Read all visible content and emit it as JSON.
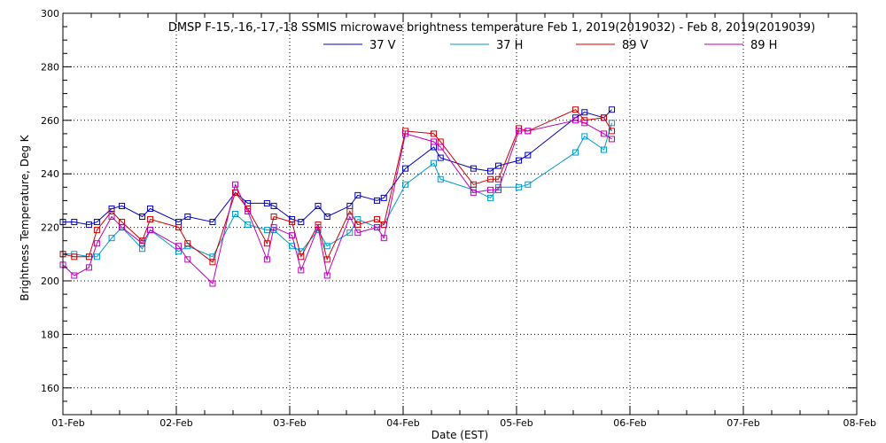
{
  "chart_data": {
    "type": "line",
    "title": "DMSP F-15,-16,-17,-18 SSMIS microwave brightness temperature Feb  1, 2019(2019032) - Feb  8, 2019(2019039)",
    "xlabel": "Date (EST)",
    "ylabel": "Brightness Temperature, Deg K",
    "xlim": [
      0,
      7
    ],
    "ylim": [
      150,
      300
    ],
    "xticks": [
      {
        "value": 0,
        "label": "01-Feb"
      },
      {
        "value": 1,
        "label": "02-Feb"
      },
      {
        "value": 2,
        "label": "03-Feb"
      },
      {
        "value": 3,
        "label": "04-Feb"
      },
      {
        "value": 4,
        "label": "05-Feb"
      },
      {
        "value": 5,
        "label": "06-Feb"
      },
      {
        "value": 6,
        "label": "07-Feb"
      },
      {
        "value": 7,
        "label": "08-Feb"
      }
    ],
    "yticks": [
      {
        "value": 160,
        "label": "160"
      },
      {
        "value": 180,
        "label": "180"
      },
      {
        "value": 200,
        "label": "200"
      },
      {
        "value": 220,
        "label": "220"
      },
      {
        "value": 240,
        "label": "240"
      },
      {
        "value": 260,
        "label": "260"
      },
      {
        "value": 280,
        "label": "280"
      },
      {
        "value": 300,
        "label": "300"
      }
    ],
    "grid": true,
    "legend": "top",
    "series": [
      {
        "name": "37 V",
        "color": "#0000bb",
        "points": [
          [
            0.0,
            222
          ],
          [
            0.1,
            222
          ],
          [
            0.23,
            221
          ],
          [
            0.3,
            222
          ],
          [
            0.43,
            227
          ],
          [
            0.52,
            228
          ],
          [
            0.7,
            224
          ],
          [
            0.77,
            227
          ],
          [
            1.02,
            222
          ],
          [
            1.1,
            224
          ],
          [
            1.32,
            222
          ],
          [
            1.52,
            233
          ],
          [
            1.63,
            229
          ],
          [
            1.8,
            229
          ],
          [
            1.86,
            228
          ],
          [
            2.02,
            223
          ],
          [
            2.1,
            222
          ],
          [
            2.25,
            228
          ],
          [
            2.33,
            224
          ],
          [
            2.53,
            228
          ],
          [
            2.6,
            232
          ],
          [
            2.77,
            230
          ],
          [
            2.83,
            231
          ],
          [
            3.02,
            242
          ],
          [
            3.27,
            250
          ],
          [
            3.33,
            246
          ],
          [
            3.62,
            242
          ],
          [
            3.77,
            241
          ],
          [
            3.84,
            243
          ],
          [
            4.02,
            245
          ],
          [
            4.1,
            247
          ],
          [
            4.52,
            261
          ],
          [
            4.6,
            263
          ],
          [
            4.77,
            261
          ],
          [
            4.84,
            264
          ]
        ]
      },
      {
        "name": "37 H",
        "color": "#0099cc",
        "points": [
          [
            0.0,
            210
          ],
          [
            0.1,
            210
          ],
          [
            0.23,
            209
          ],
          [
            0.3,
            209
          ],
          [
            0.43,
            216
          ],
          [
            0.52,
            220
          ],
          [
            0.7,
            212
          ],
          [
            0.77,
            219
          ],
          [
            1.02,
            211
          ],
          [
            1.1,
            213
          ],
          [
            1.32,
            209
          ],
          [
            1.52,
            225
          ],
          [
            1.63,
            221
          ],
          [
            1.8,
            219
          ],
          [
            1.86,
            219
          ],
          [
            2.02,
            213
          ],
          [
            2.1,
            211
          ],
          [
            2.25,
            219
          ],
          [
            2.33,
            213
          ],
          [
            2.53,
            218
          ],
          [
            2.6,
            223
          ],
          [
            2.77,
            220
          ],
          [
            2.83,
            221
          ],
          [
            3.02,
            236
          ],
          [
            3.27,
            244
          ],
          [
            3.33,
            238
          ],
          [
            3.62,
            234
          ],
          [
            3.77,
            231
          ],
          [
            3.84,
            235
          ],
          [
            4.02,
            235
          ],
          [
            4.1,
            236
          ],
          [
            4.52,
            248
          ],
          [
            4.6,
            254
          ],
          [
            4.77,
            249
          ],
          [
            4.84,
            259
          ]
        ]
      },
      {
        "name": "89 V",
        "color": "#cc0000",
        "points": [
          [
            0.0,
            210
          ],
          [
            0.1,
            209
          ],
          [
            0.23,
            209
          ],
          [
            0.3,
            219
          ],
          [
            0.43,
            226
          ],
          [
            0.52,
            222
          ],
          [
            0.7,
            215
          ],
          [
            0.77,
            223
          ],
          [
            1.02,
            220
          ],
          [
            1.1,
            214
          ],
          [
            1.32,
            207
          ],
          [
            1.52,
            233
          ],
          [
            1.63,
            227
          ],
          [
            1.8,
            214
          ],
          [
            1.86,
            224
          ],
          [
            2.02,
            222
          ],
          [
            2.1,
            209
          ],
          [
            2.25,
            221
          ],
          [
            2.33,
            208
          ],
          [
            2.53,
            226
          ],
          [
            2.6,
            221
          ],
          [
            2.77,
            223
          ],
          [
            2.83,
            221
          ],
          [
            3.02,
            256
          ],
          [
            3.27,
            255
          ],
          [
            3.33,
            252
          ],
          [
            3.62,
            236
          ],
          [
            3.77,
            238
          ],
          [
            3.84,
            238
          ],
          [
            4.02,
            257
          ],
          [
            4.1,
            256
          ],
          [
            4.52,
            264
          ],
          [
            4.6,
            260
          ],
          [
            4.77,
            261
          ],
          [
            4.84,
            256
          ]
        ]
      },
      {
        "name": "89 H",
        "color": "#bb00bb",
        "points": [
          [
            0.0,
            206
          ],
          [
            0.1,
            202
          ],
          [
            0.23,
            205
          ],
          [
            0.3,
            214
          ],
          [
            0.43,
            224
          ],
          [
            0.52,
            220
          ],
          [
            0.7,
            214
          ],
          [
            0.77,
            219
          ],
          [
            1.02,
            213
          ],
          [
            1.1,
            208
          ],
          [
            1.32,
            199
          ],
          [
            1.52,
            236
          ],
          [
            1.63,
            226
          ],
          [
            1.8,
            208
          ],
          [
            1.86,
            220
          ],
          [
            2.02,
            217
          ],
          [
            2.1,
            204
          ],
          [
            2.25,
            220
          ],
          [
            2.33,
            202
          ],
          [
            2.53,
            224
          ],
          [
            2.6,
            218
          ],
          [
            2.77,
            220
          ],
          [
            2.83,
            216
          ],
          [
            3.02,
            255
          ],
          [
            3.27,
            252
          ],
          [
            3.33,
            250
          ],
          [
            3.62,
            233
          ],
          [
            3.77,
            234
          ],
          [
            3.84,
            234
          ],
          [
            4.02,
            256
          ],
          [
            4.1,
            256
          ],
          [
            4.52,
            260
          ],
          [
            4.6,
            259
          ],
          [
            4.77,
            255
          ],
          [
            4.84,
            253
          ]
        ]
      }
    ]
  }
}
